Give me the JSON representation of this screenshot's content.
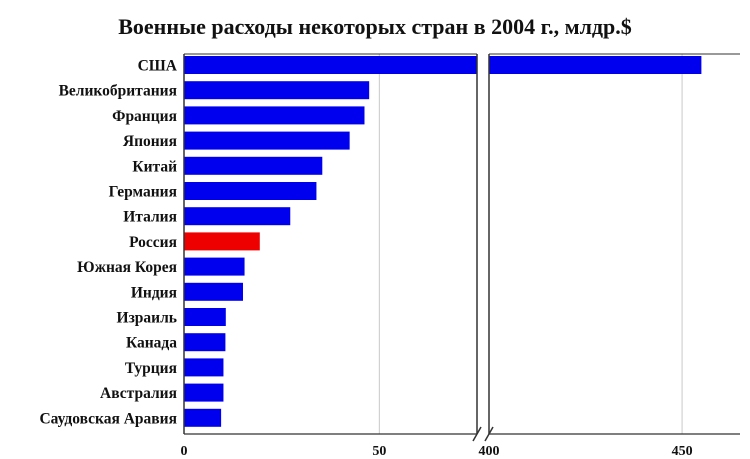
{
  "chart_data": {
    "type": "bar",
    "orientation": "horizontal",
    "title": "Военные расходы некоторых стран в 2004 г., млдр.$",
    "xlabel": "",
    "ylabel": "",
    "categories": [
      "США",
      "Великобритания",
      "Франция",
      "Япония",
      "Китай",
      "Германия",
      "Италия",
      "Россия",
      "Южная Корея",
      "Индия",
      "Израиль",
      "Канада",
      "Турция",
      "Австралия",
      "Саудовская Аравия"
    ],
    "values": [
      455,
      47.4,
      46.2,
      42.4,
      35.4,
      33.9,
      27.2,
      19.4,
      15.5,
      15.1,
      10.7,
      10.6,
      10.1,
      10.1,
      9.5
    ],
    "axis_break": true,
    "xlim_left": [
      0,
      75
    ],
    "xlim_right": [
      400,
      465
    ],
    "ticks_left": [
      "0",
      "50"
    ],
    "ticks_right": [
      "400",
      "450"
    ],
    "grid": true,
    "legend": "none",
    "colors": {
      "bar": "#0000ee",
      "highlight": "#ee0000",
      "highlight_category": "Россия",
      "grid": "#c8c8c8",
      "frame": "#333333"
    }
  }
}
